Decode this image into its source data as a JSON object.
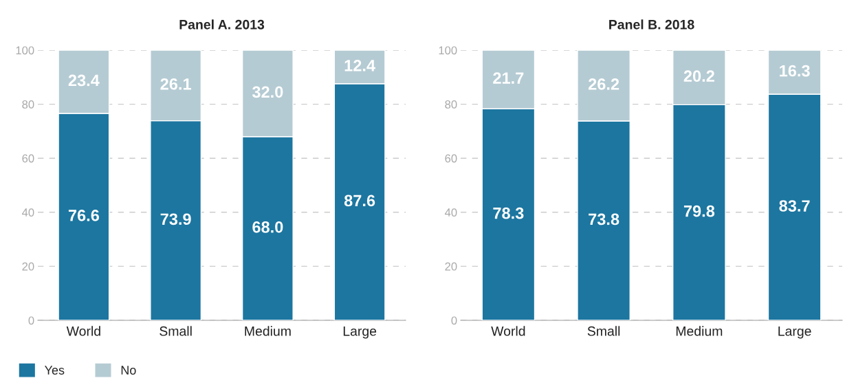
{
  "chart_data": [
    {
      "type": "bar",
      "title": "Panel A. 2013",
      "categories": [
        "World",
        "Small",
        "Medium",
        "Large"
      ],
      "stacked": true,
      "ylim": [
        0,
        100
      ],
      "yticks": [
        0,
        20,
        40,
        60,
        80,
        100
      ],
      "grid": "y",
      "legend": "bottom left",
      "series": [
        {
          "name": "Yes",
          "color": "#1c76a0",
          "values": [
            76.6,
            73.9,
            68.0,
            87.6
          ],
          "value_labels": [
            "76.6",
            "73.9",
            "68.0",
            "87.6"
          ]
        },
        {
          "name": "No",
          "color": "#b5cbd3",
          "values": [
            23.4,
            26.1,
            32.0,
            12.4
          ],
          "value_labels": [
            "23.4",
            "26.1",
            "32.0",
            "12.4"
          ]
        }
      ]
    },
    {
      "type": "bar",
      "title": "Panel B. 2018",
      "categories": [
        "World",
        "Small",
        "Medium",
        "Large"
      ],
      "stacked": true,
      "ylim": [
        0,
        100
      ],
      "yticks": [
        0,
        20,
        40,
        60,
        80,
        100
      ],
      "grid": "y",
      "series": [
        {
          "color": "#1c76a0",
          "values": [
            78.3,
            73.8,
            79.8,
            83.7
          ],
          "value_labels": [
            "78.3",
            "73.8",
            "79.8",
            "83.7"
          ]
        },
        {
          "color": "#b5cbd3",
          "values": [
            21.7,
            26.2,
            20.2,
            16.3
          ],
          "value_labels": [
            "21.7",
            "26.2",
            "20.2",
            "16.3"
          ]
        }
      ]
    }
  ]
}
